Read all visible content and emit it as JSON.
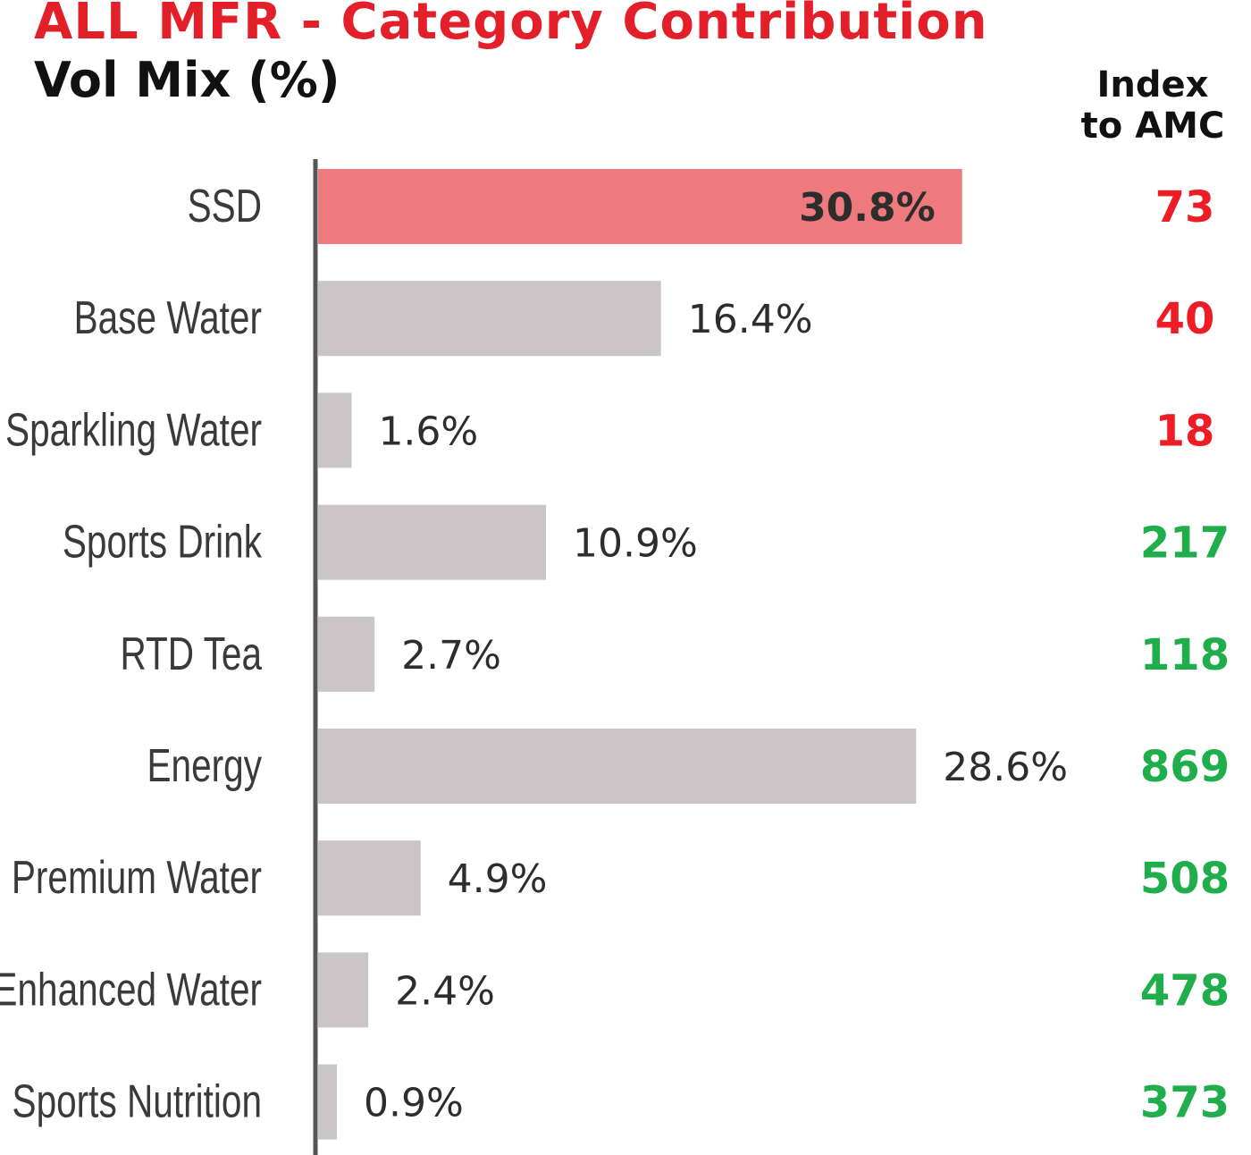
{
  "title": "ALL MFR - Category Contribution",
  "subtitle": "Vol Mix (%)",
  "index_header": [
    "Index",
    "to AMC"
  ],
  "colors": {
    "highlight_bar": "#ef7a7d",
    "bar": "#cbc5c7",
    "title": "#e3202a",
    "index_low": "#ee1c24",
    "index_high": "#1fae4b",
    "axis": "#555555"
  },
  "chart_data": {
    "type": "bar",
    "orientation": "horizontal",
    "title": "ALL MFR - Category Contribution",
    "subtitle": "Vol Mix (%)",
    "categories": [
      "SSD",
      "Base Water",
      "Sparkling Water",
      "Sports Drink",
      "RTD Tea",
      "Energy",
      "Premium Water",
      "Enhanced Water",
      "Sports Nutrition"
    ],
    "values": [
      30.8,
      16.4,
      1.6,
      10.9,
      2.7,
      28.6,
      4.9,
      2.4,
      0.9
    ],
    "value_labels": [
      "30.8%",
      "16.4%",
      "1.6%",
      "10.9%",
      "2.7%",
      "28.6%",
      "4.9%",
      "2.4%",
      "0.9%"
    ],
    "highlighted": "SSD",
    "index_to_amc": [
      73,
      40,
      18,
      217,
      118,
      869,
      508,
      478,
      373
    ],
    "index_status": [
      "low",
      "low",
      "low",
      "high",
      "high",
      "high",
      "high",
      "high",
      "high"
    ],
    "grid": false,
    "legend": "none"
  }
}
